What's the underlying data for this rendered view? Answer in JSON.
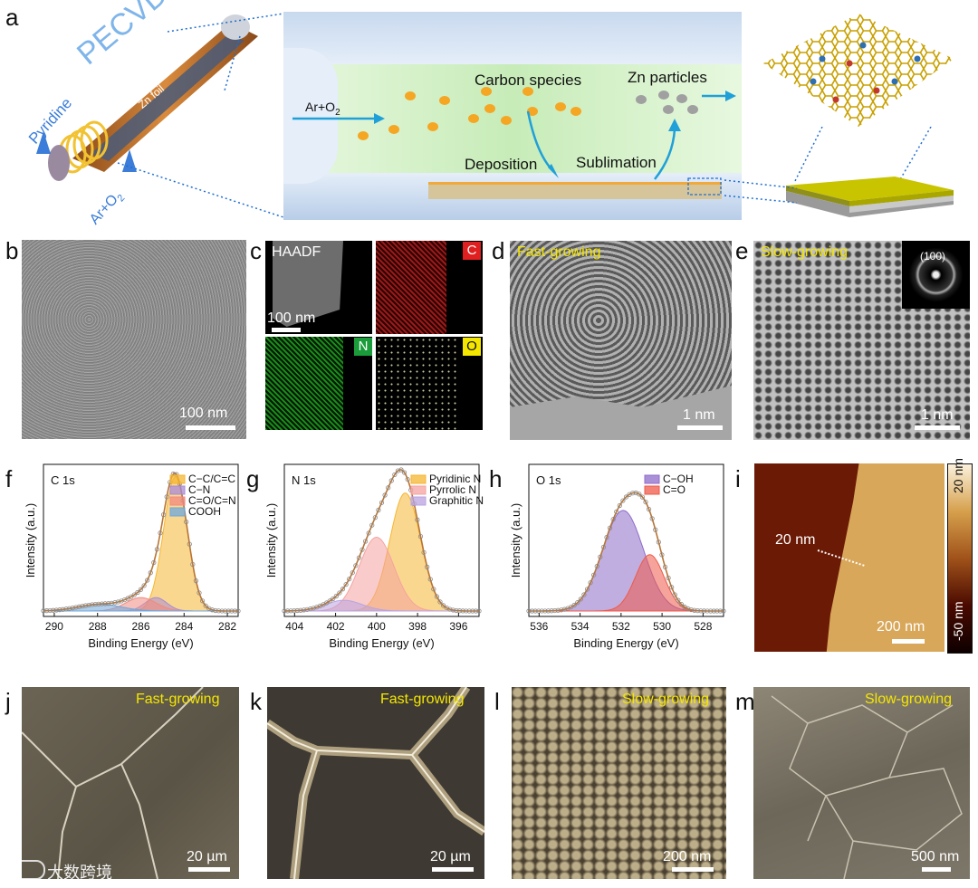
{
  "panels": {
    "a": {
      "label": "a",
      "pecvd": "PECVD",
      "zn_foil": "Zn foil",
      "pyridine": "Pyridine",
      "ar_o2_left": "Ar+O",
      "ar_o2_left_sub": "2",
      "ar_o2": "Ar+O",
      "ar_o2_sub": "2",
      "carbon_species": "Carbon species",
      "zn_particles": "Zn particles",
      "deposition": "Deposition",
      "sublimation": "Sublimation"
    },
    "b": {
      "label": "b",
      "scale": "100 nm"
    },
    "c": {
      "label": "c",
      "haadf": "HAADF",
      "scale": "100 nm",
      "el_c": "C",
      "el_n": "N",
      "el_o": "O"
    },
    "d": {
      "label": "d",
      "title": "Fast-growing",
      "scale": "1 nm"
    },
    "e": {
      "label": "e",
      "title": "Slow-growing",
      "scale": "1 nm",
      "saed": "(100)"
    },
    "i": {
      "label": "i",
      "height": "20 nm",
      "scale": "200 nm",
      "cbar_top": "20 nm",
      "cbar_bottom": "-50 nm"
    },
    "j": {
      "label": "j",
      "title": "Fast-growing",
      "scale": "20 µm"
    },
    "k": {
      "label": "k",
      "title": "Fast-growing",
      "scale": "20 µm"
    },
    "l": {
      "label": "l",
      "title": "Slow-growing",
      "scale": "200 nm"
    },
    "m": {
      "label": "m",
      "title": "Slow-growing",
      "scale": "500 nm"
    },
    "watermark": "大数跨境"
  },
  "chart_data": [
    {
      "panel": "f",
      "type": "line",
      "title": "C 1s",
      "xlabel": "Binding Energy (eV)",
      "ylabel": "Intensity (a.u.)",
      "xlim": [
        290.5,
        281.5
      ],
      "xticks": [
        282,
        284,
        286,
        288,
        290
      ],
      "series": [
        {
          "name": "C−C/C=C",
          "color": "#f5b631",
          "center": 284.4,
          "width": 0.55,
          "amp": 1.0
        },
        {
          "name": "C−N",
          "color": "#a98bd6",
          "center": 285.3,
          "width": 0.5,
          "amp": 0.1
        },
        {
          "name": "C=O/C=N",
          "color": "#f08a80",
          "center": 286.0,
          "width": 0.7,
          "amp": 0.1
        },
        {
          "name": "COOH",
          "color": "#6fa8dc",
          "center": 287.9,
          "width": 1.0,
          "amp": 0.05
        }
      ]
    },
    {
      "panel": "g",
      "type": "line",
      "title": "N 1s",
      "xlabel": "Binding Energy (eV)",
      "ylabel": "Intensity (a.u.)",
      "xlim": [
        404.5,
        395.0
      ],
      "xticks": [
        396,
        398,
        400,
        402,
        404
      ],
      "series": [
        {
          "name": "Pyridinic N",
          "color": "#f5b631",
          "center": 398.6,
          "width": 0.75,
          "amp": 0.88
        },
        {
          "name": "Pyrrolic N",
          "color": "#f4a3a0",
          "center": 400.0,
          "width": 0.85,
          "amp": 0.55
        },
        {
          "name": "Graphitic N",
          "color": "#b9a3e0",
          "center": 401.6,
          "width": 0.9,
          "amp": 0.08
        }
      ]
    },
    {
      "panel": "h",
      "type": "line",
      "title": "O 1s",
      "xlabel": "Binding Energy (eV)",
      "ylabel": "Intensity (a.u.)",
      "xlim": [
        536.5,
        527.0
      ],
      "xticks": [
        528,
        530,
        532,
        534,
        536
      ],
      "series": [
        {
          "name": "C−OH",
          "color": "#8e6cc9",
          "center": 531.9,
          "width": 1.0,
          "amp": 0.75
        },
        {
          "name": "C=O",
          "color": "#ee5a48",
          "center": 530.6,
          "width": 0.7,
          "amp": 0.42
        }
      ]
    }
  ]
}
